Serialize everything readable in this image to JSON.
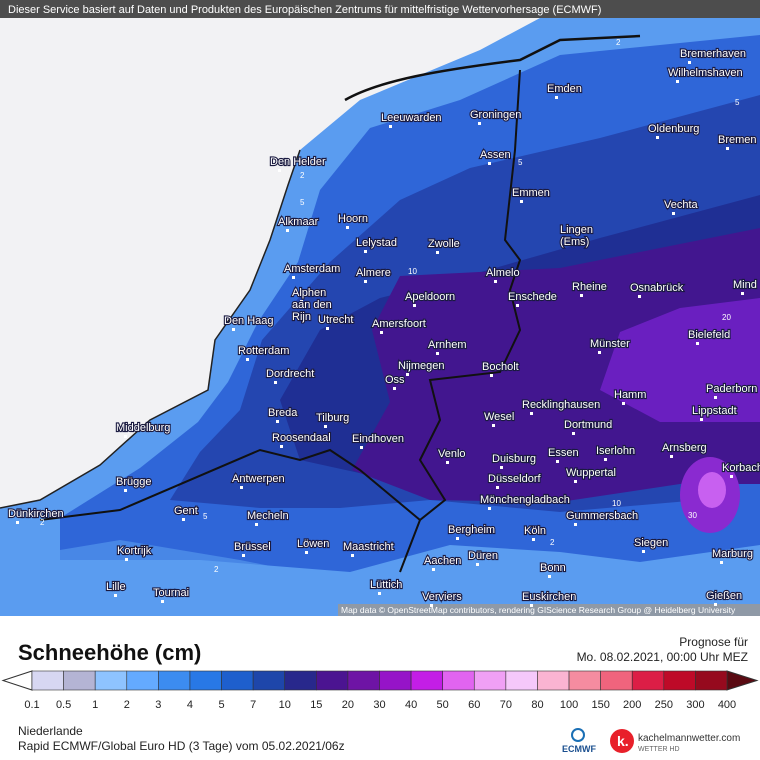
{
  "header": {
    "notice": "Dieser Service basiert auf Daten und Produkten des Europäischen Zentrums für mittelfristige Wettervorhersage (ECMWF)"
  },
  "map": {
    "attribution": "Map data © OpenStreetMap contributors, rendering GIScience Research Group @ Heidelberg University",
    "cities": [
      [
        "Bremerhaven"
      ],
      [
        "Wilhelmshaven"
      ],
      [
        "Emden"
      ],
      [
        "Leeuwarden"
      ],
      [
        "Groningen"
      ],
      [
        "Oldenburg"
      ],
      [
        "Bremen"
      ],
      [
        "Den Helder"
      ],
      [
        "Assen"
      ],
      [
        "Emmen"
      ],
      [
        "Vechta"
      ],
      [
        "Alkmaar"
      ],
      [
        "Hoorn"
      ],
      [
        "Lingen",
        "(Ems)"
      ],
      [
        "Lelystad"
      ],
      [
        "Zwolle"
      ],
      [
        "Amsterdam"
      ],
      [
        "Almere"
      ],
      [
        "Almelo"
      ],
      [
        "Rheine"
      ],
      [
        "Osnabrück"
      ],
      [
        "Mind"
      ],
      [
        "Alphen",
        "aan den",
        "Rijn"
      ],
      [
        "Apeldoorn"
      ],
      [
        "Enschede"
      ],
      [
        "Utrecht"
      ],
      [
        "Amersfoort"
      ],
      [
        "Den Haag"
      ],
      [
        "Bielefeld"
      ],
      [
        "Arnhem"
      ],
      [
        "Münster"
      ],
      [
        "Rotterdam"
      ],
      [
        "Nijmegen"
      ],
      [
        "Bocholt"
      ],
      [
        "Dordrecht"
      ],
      [
        "Oss"
      ],
      [
        "Paderborn"
      ],
      [
        "Hamm"
      ],
      [
        "Recklinghausen"
      ],
      [
        "Lippstadt"
      ],
      [
        "Breda"
      ],
      [
        "Tilburg"
      ],
      [
        "Wesel"
      ],
      [
        "Dortmund"
      ],
      [
        "Middelburg"
      ],
      [
        "Roosendaal"
      ],
      [
        "Eindhoven"
      ],
      [
        "Iserlohn"
      ],
      [
        "Arnsberg"
      ],
      [
        "Venlo"
      ],
      [
        "Essen"
      ],
      [
        "Duisburg"
      ],
      [
        "Korbach"
      ],
      [
        "Wuppertal"
      ],
      [
        "Brügge"
      ],
      [
        "Antwerpen"
      ],
      [
        "Düsseldorf"
      ],
      [
        "Mönchengladbach"
      ],
      [
        "Dünkirchen"
      ],
      [
        "Gent"
      ],
      [
        "Mecheln"
      ],
      [
        "Gummersbach"
      ],
      [
        "Bergheim"
      ],
      [
        "Köln"
      ],
      [
        "Siegen"
      ],
      [
        "Kortrijk"
      ],
      [
        "Brüssel"
      ],
      [
        "Löwen"
      ],
      [
        "Maastricht"
      ],
      [
        "Düren"
      ],
      [
        "Aachen"
      ],
      [
        "Marburg"
      ],
      [
        "Bonn"
      ],
      [
        "Lille"
      ],
      [
        "Tournai"
      ],
      [
        "Lüttich"
      ],
      [
        "Verviers"
      ],
      [
        "Euskirchen"
      ],
      [
        "Gießen"
      ]
    ],
    "contour_labels": [
      "2",
      "5",
      "5",
      "5",
      "2",
      "10",
      "20",
      "10",
      "30",
      "2",
      "5",
      "2",
      "2"
    ]
  },
  "legend": {
    "title": "Schneehöhe (cm)",
    "forecast_label": "Prognose für",
    "forecast_time": "Mo. 08.02.2021, 00:00 Uhr MEZ",
    "ticks": [
      "0.1",
      "0.5",
      "1",
      "2",
      "3",
      "4",
      "5",
      "7",
      "10",
      "15",
      "20",
      "30",
      "40",
      "50",
      "60",
      "70",
      "80",
      "100",
      "150",
      "200",
      "250",
      "300",
      "400"
    ],
    "colors": [
      "#d7d7f2",
      "#b4b4d4",
      "#8ec3ff",
      "#64aaff",
      "#3c8cf0",
      "#2878e6",
      "#1e5fcd",
      "#1e46aa",
      "#28288c",
      "#4b1491",
      "#6e14a5",
      "#9614c8",
      "#c31ee6",
      "#e164f0",
      "#f0a0f5",
      "#f5c8fa",
      "#fab4d2",
      "#f58ca0",
      "#f0647d",
      "#dc1e46",
      "#be0a28",
      "#960a1e"
    ]
  },
  "footer": {
    "region": "Niederlande",
    "model": "Rapid ECMWF/Global Euro HD (3 Tage) vom  05.02.2021/06z",
    "logo_ecmwf": "ECMWF",
    "logo_site": "kachelmannwetter.com",
    "logo_sub": "WETTER HD"
  }
}
